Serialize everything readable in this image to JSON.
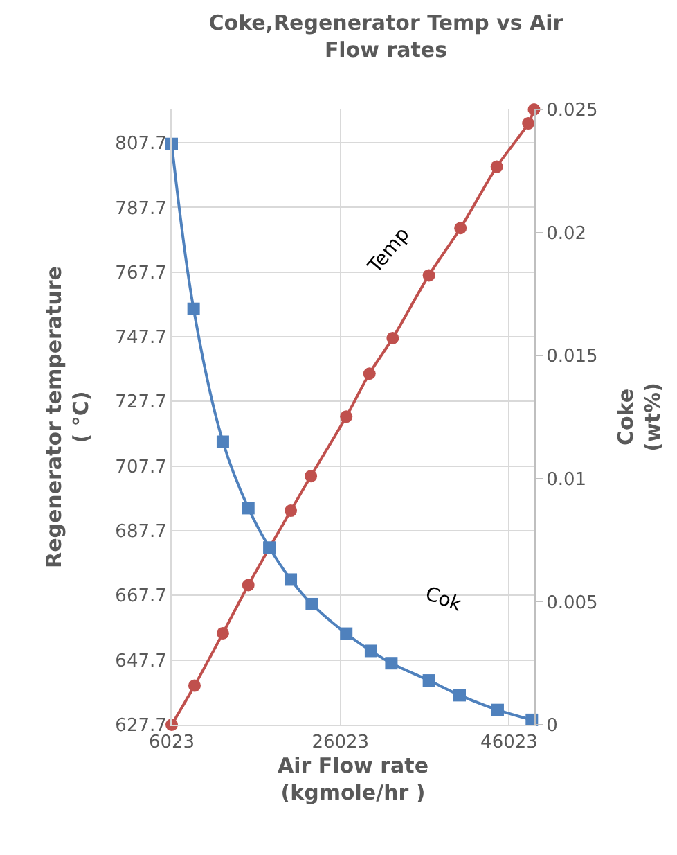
{
  "chart_data": {
    "type": "line",
    "title": "Coke,Regenerator Temp vs Air\nFlow rates",
    "xlabel": "Air Flow rate\n(kgmole/hr )",
    "ylabel": "Regenerator temperature\n( °C)",
    "y2label": "Coke\n(wt%)",
    "xlim": [
      6023,
      49023
    ],
    "xticks": [
      6023,
      26023,
      46023
    ],
    "ylim": [
      627.7,
      818
    ],
    "yticks": [
      627.7,
      647.7,
      667.7,
      687.7,
      707.7,
      727.7,
      747.7,
      767.7,
      787.7,
      807.7
    ],
    "y2lim": [
      0,
      0.025
    ],
    "y2ticks": [
      0,
      0.005,
      0.01,
      0.015,
      0.02,
      0.025
    ],
    "grid": true,
    "series": [
      {
        "color": "#c0504d",
        "marker": "circle",
        "x": [
          6023,
          8730,
          12090,
          15110,
          20140,
          22520,
          26720,
          29470,
          32230,
          36520,
          40260,
          44570,
          48300,
          48980
        ],
        "values": [
          627.7,
          639.8,
          656.0,
          670.9,
          693.9,
          704.6,
          723.0,
          736.3,
          747.3,
          766.7,
          781.3,
          800.3,
          813.7,
          818.0
        ]
      },
      {
        "color": "#4f81bd",
        "marker": "square",
        "axis": "y2",
        "x": [
          6023,
          8620,
          12090,
          15110,
          17600,
          20140,
          22630,
          26720,
          29650,
          32070,
          36520,
          40160,
          44670,
          48720
        ],
        "values": [
          0.0236,
          0.0169,
          0.0115,
          0.0088,
          0.0072,
          0.0059,
          0.0049,
          0.0037,
          0.003,
          0.0025,
          0.0018,
          0.0012,
          0.0006,
          0.0002
        ]
      }
    ],
    "annotations": [
      "Temp",
      "Cok"
    ]
  }
}
